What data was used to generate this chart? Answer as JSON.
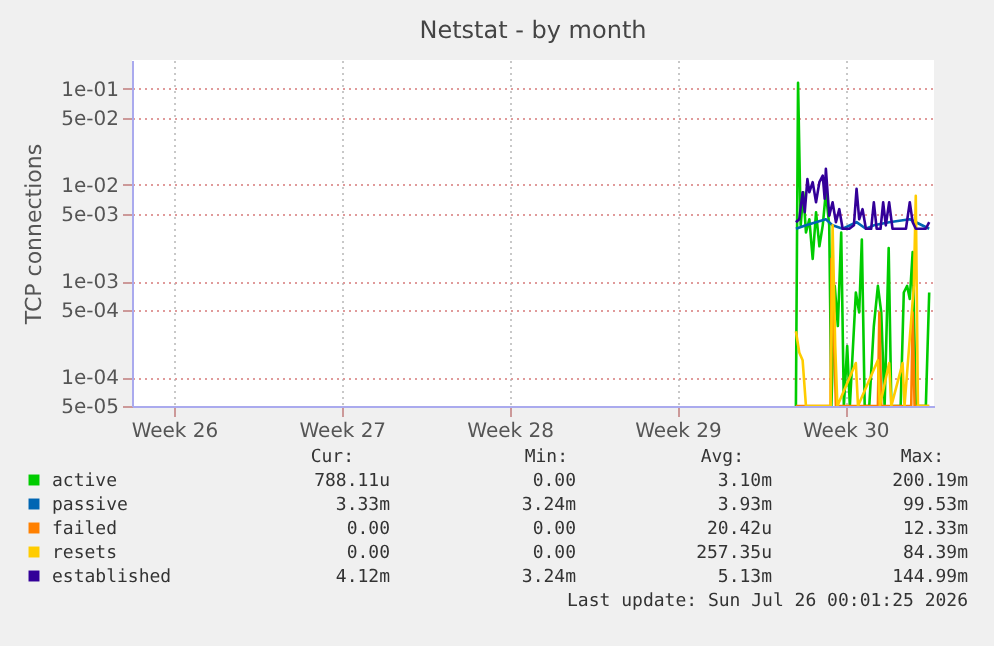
{
  "chart_data": {
    "type": "line",
    "title": "Netstat - by month",
    "ylabel": "TCP connections",
    "log": true,
    "grid": true,
    "legend": "bottom",
    "line_style": "solid",
    "xlim": [
      "2026-06-22T18:00",
      "2026-07-26T04:48"
    ],
    "xticks": [
      {
        "value": "2026-06-24T12:00",
        "label": "Week 26"
      },
      {
        "value": "2026-07-01T12:00",
        "label": "Week 27"
      },
      {
        "value": "2026-07-08T12:00",
        "label": "Week 28"
      },
      {
        "value": "2026-07-15T12:00",
        "label": "Week 29"
      },
      {
        "value": "2026-07-22T12:00",
        "label": "Week 30"
      }
    ],
    "ylim": [
      5e-05,
      0.2
    ],
    "yticks": [
      {
        "value": 0.1,
        "label": "1e-01"
      },
      {
        "value": 0.05,
        "label": "5e-02"
      },
      {
        "value": 0.01,
        "label": "1e-02"
      },
      {
        "value": 0.005,
        "label": "5e-03"
      },
      {
        "value": 0.001,
        "label": "1e-03"
      },
      {
        "value": 0.0005,
        "label": "5e-04"
      },
      {
        "value": 0.0001,
        "label": "1e-04"
      },
      {
        "value": 5e-05,
        "label": "5e-05"
      }
    ],
    "series": [
      {
        "name": "active",
        "color": "#00cc00",
        "x": [
          "2026-07-20T10:34",
          "2026-07-20T12:43",
          "2026-07-20T15:22",
          "2026-07-20T18:00",
          "2026-07-20T20:38",
          "2026-07-21T00:00",
          "2026-07-21T03:22",
          "2026-07-21T06:43",
          "2026-07-21T10:05",
          "2026-07-21T13:26",
          "2026-07-21T16:34",
          "2026-07-21T19:55",
          "2026-07-21T22:05",
          "2026-07-22T01:26",
          "2026-07-22T04:34",
          "2026-07-22T07:55",
          "2026-07-22T10:34",
          "2026-07-22T13:55",
          "2026-07-22T16:34",
          "2026-07-22T22:34",
          "2026-07-23T01:55",
          "2026-07-23T04:34",
          "2026-07-23T07:26",
          "2026-07-23T12:00",
          "2026-07-23T16:34",
          "2026-07-23T20:38",
          "2026-07-24T00:00",
          "2026-07-24T03:22",
          "2026-07-24T07:26",
          "2026-07-24T10:05",
          "2026-07-24T19:26",
          "2026-07-24T22:34",
          "2026-07-25T01:55",
          "2026-07-25T04:34",
          "2026-07-25T07:26",
          "2026-07-25T10:34",
          "2026-07-25T20:38",
          "2026-07-26T00:00"
        ],
        "values": [
          5e-05,
          0.116,
          0.0038,
          0.0084,
          0.0032,
          0.0044,
          0.0017,
          0.0052,
          0.0023,
          0.0038,
          0.0084,
          0.0038,
          5e-05,
          0.00089,
          0.00034,
          0.0032,
          5e-05,
          0.00021,
          5e-05,
          0.00076,
          0.00047,
          0.0027,
          5e-05,
          5e-05,
          0.00034,
          0.00089,
          0.00047,
          5e-05,
          0.0022,
          5e-05,
          5e-05,
          0.00076,
          0.00089,
          0.00065,
          0.002,
          5e-05,
          5e-05,
          0.00076
        ]
      },
      {
        "name": "passive",
        "color": "#0066b3",
        "x": [
          "2026-07-20T10:34",
          "2026-07-20T20:38",
          "2026-07-21T16:34",
          "2026-07-21T23:17",
          "2026-07-22T09:22",
          "2026-07-22T23:17",
          "2026-07-23T08:38",
          "2026-07-23T16:34",
          "2026-07-24T07:55",
          "2026-07-25T04:34",
          "2026-07-26T00:00"
        ],
        "values": [
          0.0035,
          0.0038,
          0.0044,
          0.0038,
          0.0035,
          0.0041,
          0.0035,
          0.0038,
          0.0041,
          0.0044,
          0.0035
        ]
      },
      {
        "name": "failed",
        "color": "#ff8000",
        "x": [
          "2026-07-20T10:34",
          "2026-07-21T21:22",
          "2026-07-21T22:05",
          "2026-07-21T23:17",
          "2026-07-22T02:38",
          "2026-07-23T20:38",
          "2026-07-23T22:05",
          "2026-07-24T00:00",
          "2026-07-25T06:00",
          "2026-07-25T07:26",
          "2026-07-25T09:22",
          "2026-07-26T00:00"
        ],
        "values": [
          5e-05,
          5e-05,
          0.0017,
          0.00076,
          5e-05,
          5e-05,
          0.00047,
          5e-05,
          5e-05,
          0.00047,
          5e-05,
          5e-05
        ]
      },
      {
        "name": "resets",
        "color": "#ffcc00",
        "x": [
          "2026-07-20T10:34",
          "2026-07-20T13:55",
          "2026-07-20T17:17",
          "2026-07-20T20:38",
          "2026-07-21T21:22",
          "2026-07-21T23:17",
          "2026-07-22T01:55",
          "2026-07-22T04:05",
          "2026-07-22T22:34",
          "2026-07-23T00:43",
          "2026-07-23T20:38",
          "2026-07-23T22:34",
          "2026-07-24T07:55",
          "2026-07-24T10:05",
          "2026-07-24T21:22",
          "2026-07-24T23:17",
          "2026-07-25T08:38",
          "2026-07-25T10:34",
          "2026-07-25T12:43",
          "2026-07-26T00:00"
        ],
        "values": [
          0.0003,
          0.00018,
          0.00015,
          5e-05,
          5e-05,
          0.0038,
          0.00021,
          5e-05,
          0.00014,
          5e-05,
          0.00015,
          5e-05,
          0.00014,
          5e-05,
          0.00014,
          5e-05,
          0.00089,
          0.0077,
          5e-05,
          5e-05
        ]
      },
      {
        "name": "established",
        "color": "#330099",
        "x": [
          "2026-07-20T10:34",
          "2026-07-20T13:55",
          "2026-07-20T17:17",
          "2026-07-20T19:26",
          "2026-07-20T22:05",
          "2026-07-21T00:00",
          "2026-07-21T03:22",
          "2026-07-21T06:43",
          "2026-07-21T10:05",
          "2026-07-21T13:26",
          "2026-07-21T15:22",
          "2026-07-21T16:34",
          "2026-07-21T19:55",
          "2026-07-21T23:17",
          "2026-07-22T02:38",
          "2026-07-22T06:00",
          "2026-07-22T09:22",
          "2026-07-22T16:05",
          "2026-07-22T20:38",
          "2026-07-22T23:17",
          "2026-07-23T01:55",
          "2026-07-23T05:17",
          "2026-07-23T08:38",
          "2026-07-23T13:55",
          "2026-07-23T16:34",
          "2026-07-23T19:26",
          "2026-07-23T23:17",
          "2026-07-24T01:55",
          "2026-07-24T04:34",
          "2026-07-24T07:55",
          "2026-07-24T11:17",
          "2026-07-25T00:43",
          "2026-07-25T04:34",
          "2026-07-25T07:26",
          "2026-07-25T10:34",
          "2026-07-25T20:38",
          "2026-07-26T00:00"
        ],
        "values": [
          0.0041,
          0.0044,
          0.0084,
          0.0052,
          0.0115,
          0.0084,
          0.0107,
          0.0066,
          0.0107,
          0.0125,
          0.0072,
          0.0147,
          0.0048,
          0.0066,
          0.0041,
          0.0056,
          0.0035,
          0.0035,
          0.0038,
          0.0091,
          0.0044,
          0.0056,
          0.0035,
          0.0035,
          0.0066,
          0.0035,
          0.0035,
          0.0066,
          0.0038,
          0.0066,
          0.0035,
          0.0035,
          0.0066,
          0.0041,
          0.0035,
          0.0035,
          0.0041
        ]
      }
    ],
    "annotations": [
      "Cur:",
      "Min:",
      "Avg:",
      "Max:",
      "788.11u",
      "0.00",
      "3.10m",
      "200.19m",
      "3.33m",
      "3.24m",
      "3.93m",
      "99.53m",
      "0.00",
      "0.00",
      "20.42u",
      "12.33m",
      "0.00",
      "0.00",
      "257.35u",
      "84.39m",
      "4.12m",
      "3.24m",
      "5.13m",
      "144.99m",
      "Last update: Sun Jul 26 00:01:25 2026"
    ]
  }
}
